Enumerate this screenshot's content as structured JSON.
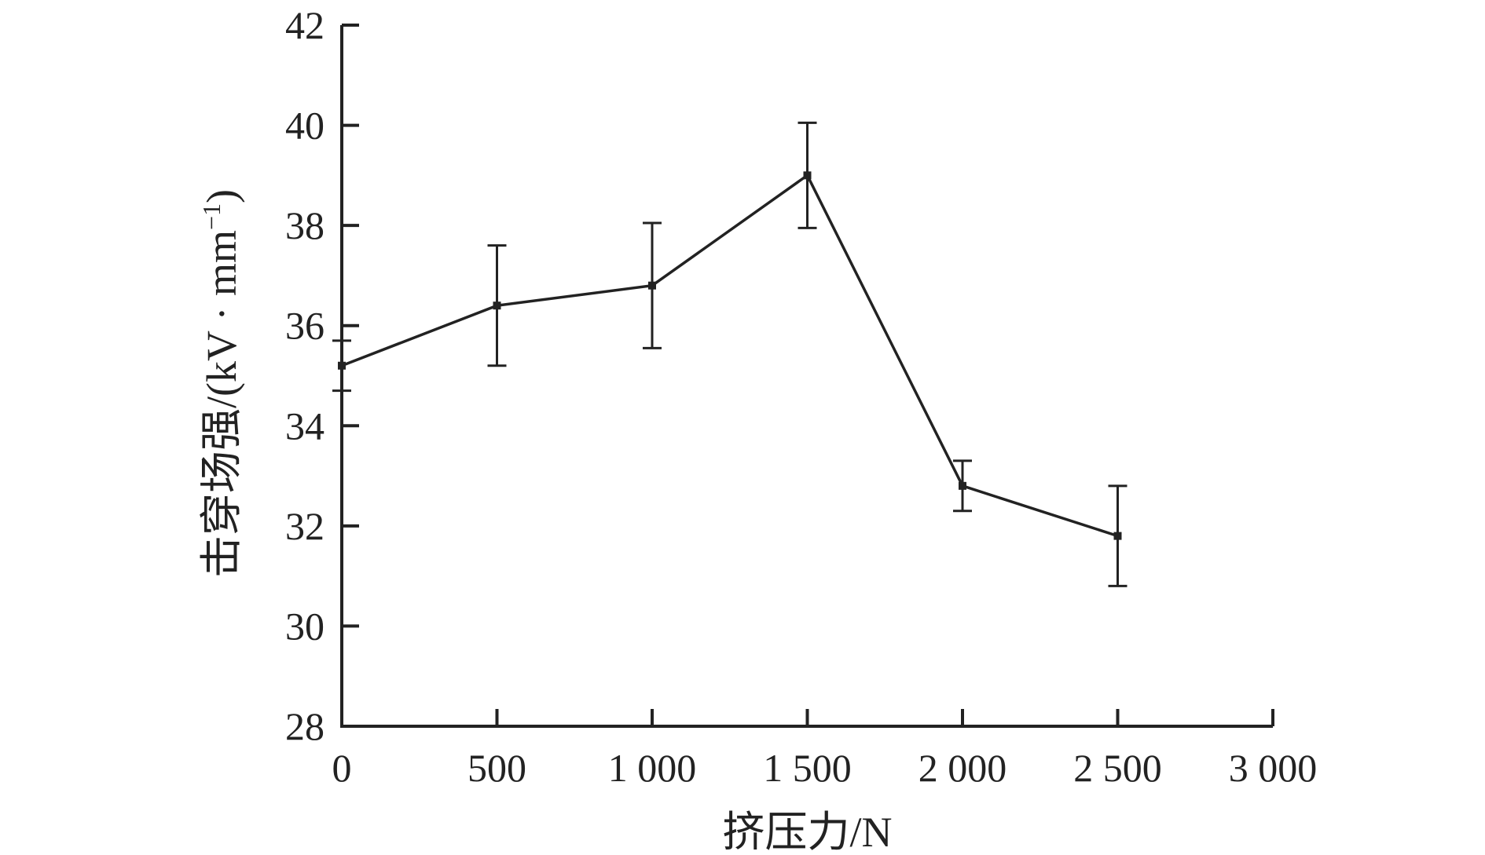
{
  "chart_data": {
    "type": "line",
    "title": "",
    "xlabel": "挤压力/N",
    "ylabel": "击穿场强/(kV · mm",
    "ylabel_superscript": "−1",
    "ylabel_suffix": ")",
    "x": [
      0,
      500,
      1000,
      1500,
      2000,
      2500
    ],
    "series": [
      {
        "values": [
          35.2,
          36.4,
          36.8,
          39.0,
          32.8,
          31.8
        ],
        "error": [
          0.5,
          1.2,
          1.25,
          1.05,
          0.5,
          1.0
        ]
      }
    ],
    "xlim": [
      0,
      3000
    ],
    "ylim": [
      28,
      42
    ],
    "xticks": [
      0,
      500,
      1000,
      1500,
      2000,
      2500,
      3000
    ],
    "xtick_labels": [
      "0",
      "500",
      "1 000",
      "1 500",
      "2 000",
      "2 500",
      "3 000"
    ],
    "yticks": [
      28,
      30,
      32,
      34,
      36,
      38,
      40,
      42
    ],
    "ytick_labels": [
      "28",
      "30",
      "32",
      "34",
      "36",
      "38",
      "40",
      "42"
    ],
    "grid": false,
    "legend": "none",
    "colors": {
      "line": "#222222"
    }
  }
}
